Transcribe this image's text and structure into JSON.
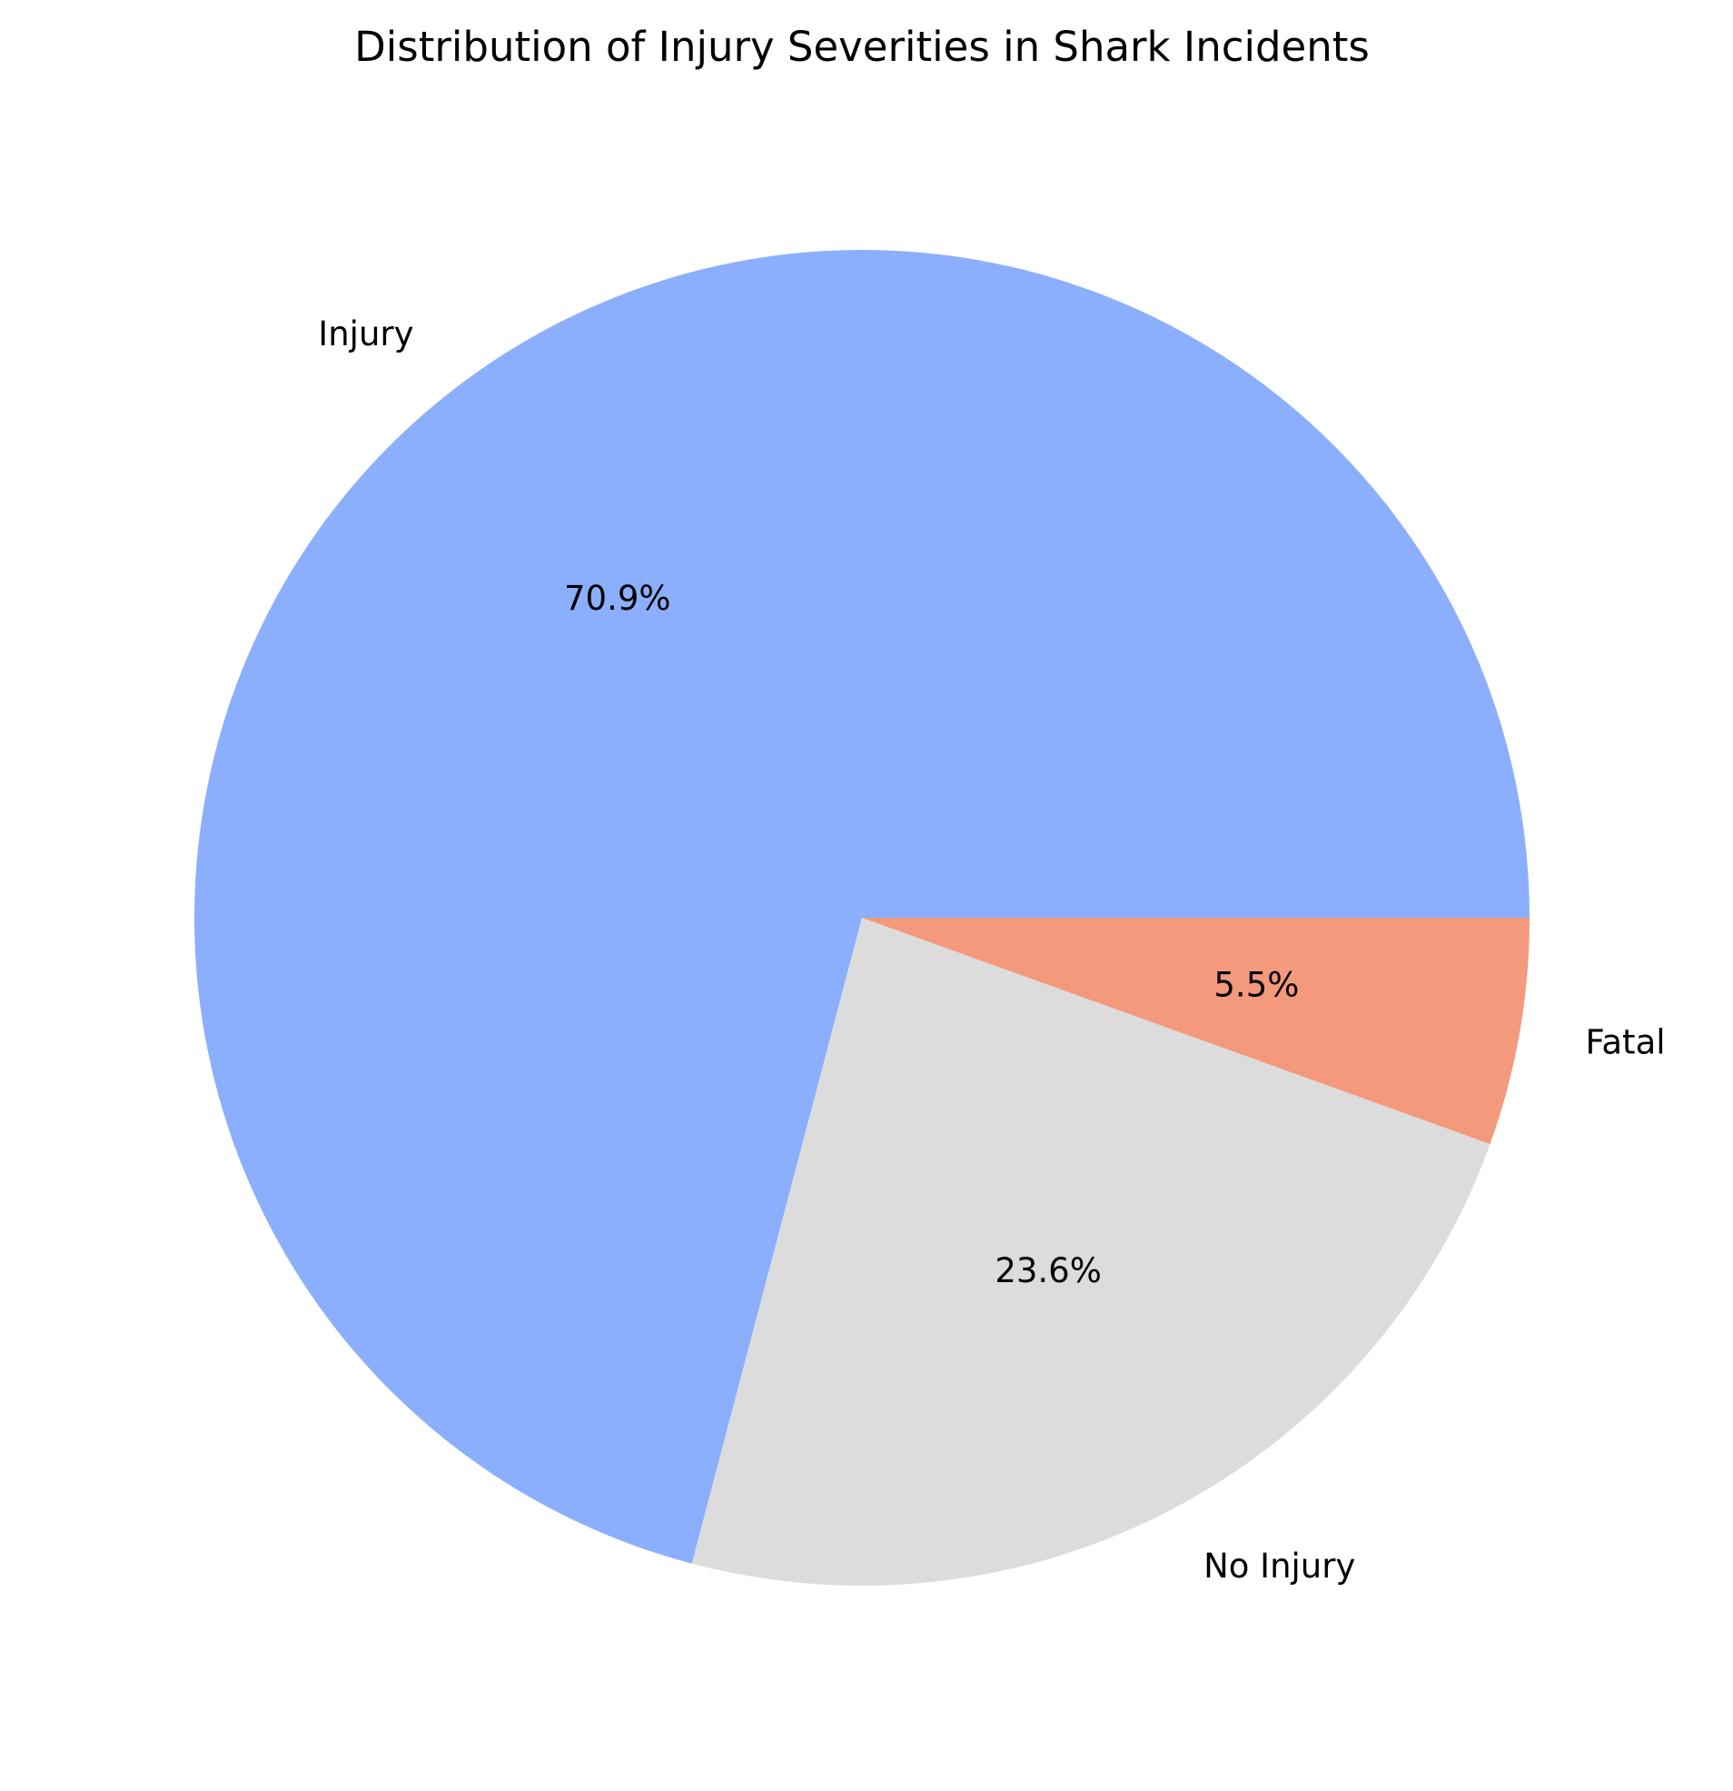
{
  "chart_data": {
    "type": "pie",
    "title": "Distribution of Injury Severities in Shark Incidents",
    "categories": [
      "Injury",
      "No Injury",
      "Fatal"
    ],
    "values": [
      70.9,
      23.6,
      5.5
    ],
    "value_labels": [
      "70.9%",
      "23.6%",
      "5.5%"
    ],
    "colors": [
      "#8caffd",
      "#dcdcdc",
      "#f4997b"
    ],
    "start_angle_deg": 0,
    "direction": "counterclockwise",
    "legend": "none"
  }
}
